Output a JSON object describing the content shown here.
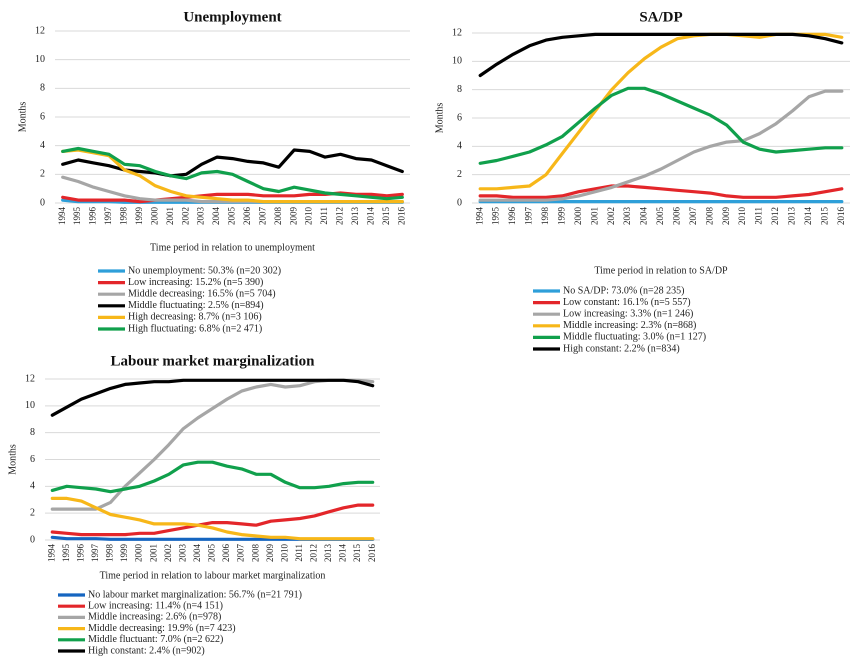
{
  "chart_data": [
    {
      "type": "line",
      "title": "Unemployment",
      "y_label": "Months",
      "x_label": "Time period in relation to unemployment",
      "categories": [
        "1994",
        "1995",
        "1996",
        "1997",
        "1998",
        "1999",
        "2000",
        "2001",
        "2002",
        "2003",
        "2004",
        "2005",
        "2006",
        "2007",
        "2008",
        "2009",
        "2010",
        "2011",
        "2012",
        "2013",
        "2014",
        "2015",
        "2016"
      ],
      "ylim": [
        0,
        12
      ],
      "yticks": [
        0,
        2,
        4,
        6,
        8,
        10,
        12
      ],
      "grid": true,
      "series": [
        {
          "name": "No unemployment: 50.3% (n=20 302)",
          "color": "#2e9fd9",
          "values": [
            0.2,
            0.1,
            0.1,
            0.1,
            0.05,
            0.05,
            0.05,
            0.05,
            0.05,
            0.05,
            0.05,
            0.05,
            0.05,
            0.05,
            0.05,
            0.05,
            0.05,
            0.05,
            0.05,
            0.05,
            0.05,
            0.05,
            0.05
          ]
        },
        {
          "name": "Low increasing: 15.2% (n=5 390)",
          "color": "#e3262a",
          "values": [
            0.4,
            0.2,
            0.2,
            0.2,
            0.2,
            0.1,
            0.2,
            0.3,
            0.4,
            0.5,
            0.6,
            0.6,
            0.6,
            0.5,
            0.5,
            0.5,
            0.6,
            0.6,
            0.7,
            0.6,
            0.6,
            0.5,
            0.6
          ]
        },
        {
          "name": "Middle decreasing: 16.5% (n=5 704)",
          "color": "#a6a6a6",
          "values": [
            1.8,
            1.5,
            1.1,
            0.8,
            0.5,
            0.3,
            0.2,
            0.2,
            0.2,
            0.1,
            0.1,
            0.1,
            0.1,
            0.1,
            0.1,
            0.1,
            0.1,
            0.1,
            0.1,
            0.1,
            0.1,
            0.1,
            0.1
          ]
        },
        {
          "name": "Middle fluctuating: 2.5% (n=894)",
          "color": "#000000",
          "values": [
            2.7,
            3.0,
            2.8,
            2.6,
            2.3,
            2.2,
            2.1,
            1.9,
            2.0,
            2.7,
            3.2,
            3.1,
            2.9,
            2.8,
            2.5,
            3.7,
            3.6,
            3.2,
            3.4,
            3.1,
            3.0,
            2.6,
            2.2
          ]
        },
        {
          "name": "High decreasing: 8.7% (n=3 106)",
          "color": "#f7b719",
          "values": [
            3.6,
            3.7,
            3.5,
            3.3,
            2.3,
            1.9,
            1.2,
            0.8,
            0.5,
            0.4,
            0.3,
            0.2,
            0.2,
            0.1,
            0.1,
            0.1,
            0.1,
            0.1,
            0.1,
            0.1,
            0.1,
            0.1,
            0.1
          ]
        },
        {
          "name": "High fluctuating: 6.8% (n=2 471)",
          "color": "#10a04c",
          "values": [
            3.6,
            3.8,
            3.6,
            3.4,
            2.7,
            2.6,
            2.2,
            1.9,
            1.7,
            2.1,
            2.2,
            2.0,
            1.5,
            1.0,
            0.8,
            1.1,
            0.9,
            0.7,
            0.6,
            0.5,
            0.4,
            0.3,
            0.4
          ]
        }
      ]
    },
    {
      "type": "line",
      "title": "SA/DP",
      "y_label": "Months",
      "x_label": "Time period in relation to SA/DP",
      "categories": [
        "1994",
        "1995",
        "1996",
        "1997",
        "1998",
        "1999",
        "2000",
        "2001",
        "2002",
        "2003",
        "2004",
        "2005",
        "2006",
        "2007",
        "2008",
        "2009",
        "2010",
        "2011",
        "2012",
        "2013",
        "2014",
        "2015",
        "2016"
      ],
      "ylim": [
        0,
        12
      ],
      "yticks": [
        0,
        2,
        4,
        6,
        8,
        10,
        12
      ],
      "grid": true,
      "series": [
        {
          "name": "No SA/DP: 73.0% (n=28 235)",
          "color": "#2e9fd9",
          "values": [
            0.1,
            0.1,
            0.1,
            0.1,
            0.1,
            0.1,
            0.1,
            0.1,
            0.1,
            0.1,
            0.1,
            0.1,
            0.1,
            0.1,
            0.1,
            0.1,
            0.1,
            0.1,
            0.1,
            0.1,
            0.1,
            0.1,
            0.1
          ]
        },
        {
          "name": "Low constant: 16.1% (n=5 557)",
          "color": "#e3262a",
          "values": [
            0.5,
            0.5,
            0.4,
            0.4,
            0.4,
            0.5,
            0.8,
            1.0,
            1.2,
            1.2,
            1.1,
            1.0,
            0.9,
            0.8,
            0.7,
            0.5,
            0.4,
            0.4,
            0.4,
            0.5,
            0.6,
            0.8,
            1.0
          ]
        },
        {
          "name": "Low increasing: 3.3% (n=1 246)",
          "color": "#a6a6a6",
          "values": [
            0.2,
            0.2,
            0.2,
            0.2,
            0.2,
            0.3,
            0.5,
            0.8,
            1.1,
            1.5,
            1.9,
            2.4,
            3.0,
            3.6,
            4.0,
            4.3,
            4.4,
            4.9,
            5.6,
            6.5,
            7.5,
            7.9,
            7.9
          ]
        },
        {
          "name": "Middle increasing: 2.3% (n=868)",
          "color": "#f7b719",
          "values": [
            1.0,
            1.0,
            1.1,
            1.2,
            2.0,
            3.5,
            5.0,
            6.5,
            8.0,
            9.2,
            10.2,
            11.0,
            11.6,
            11.8,
            11.9,
            11.9,
            11.8,
            11.7,
            11.9,
            11.9,
            11.9,
            11.9,
            11.7
          ]
        },
        {
          "name": "Middle fluctuating: 3.0% (n=1 127)",
          "color": "#10a04c",
          "values": [
            2.8,
            3.0,
            3.3,
            3.6,
            4.1,
            4.7,
            5.7,
            6.7,
            7.6,
            8.1,
            8.1,
            7.7,
            7.2,
            6.7,
            6.2,
            5.5,
            4.3,
            3.8,
            3.6,
            3.7,
            3.8,
            3.9,
            3.9
          ]
        },
        {
          "name": "High constant: 2.2% (n=834)",
          "color": "#000000",
          "values": [
            9.0,
            9.8,
            10.5,
            11.1,
            11.5,
            11.7,
            11.8,
            11.9,
            11.9,
            11.9,
            11.9,
            11.9,
            11.9,
            11.9,
            11.9,
            11.9,
            11.9,
            11.9,
            11.9,
            11.9,
            11.8,
            11.6,
            11.3
          ]
        }
      ]
    },
    {
      "type": "line",
      "title": "Labour market marginalization",
      "y_label": "Months",
      "x_label": "Time period in relation to labour market marginalization",
      "categories": [
        "1994",
        "1995",
        "1996",
        "1997",
        "1998",
        "1999",
        "2000",
        "2001",
        "2002",
        "2003",
        "2004",
        "2005",
        "2006",
        "2007",
        "2008",
        "2009",
        "2010",
        "2011",
        "2012",
        "2013",
        "2014",
        "2015",
        "2016"
      ],
      "ylim": [
        0,
        12
      ],
      "yticks": [
        0,
        2,
        4,
        6,
        8,
        10,
        12
      ],
      "grid": true,
      "series": [
        {
          "name": "No labour market marginalization: 56.7% (n=21 791)",
          "color": "#1565c0",
          "values": [
            0.2,
            0.1,
            0.1,
            0.1,
            0.05,
            0.05,
            0.05,
            0.05,
            0.05,
            0.05,
            0.05,
            0.05,
            0.05,
            0.05,
            0.05,
            0.05,
            0.05,
            0.05,
            0.05,
            0.05,
            0.05,
            0.05,
            0.05
          ]
        },
        {
          "name": "Low increasing: 11.4% (n=4 151)",
          "color": "#e3262a",
          "values": [
            0.6,
            0.5,
            0.4,
            0.4,
            0.4,
            0.4,
            0.5,
            0.5,
            0.7,
            0.9,
            1.1,
            1.3,
            1.3,
            1.2,
            1.1,
            1.4,
            1.5,
            1.6,
            1.8,
            2.1,
            2.4,
            2.6,
            2.6
          ]
        },
        {
          "name": "Middle increasing: 2.6% (n=978)",
          "color": "#a6a6a6",
          "values": [
            2.3,
            2.3,
            2.3,
            2.3,
            2.8,
            4.0,
            5.0,
            6.0,
            7.1,
            8.3,
            9.1,
            9.8,
            10.5,
            11.1,
            11.4,
            11.6,
            11.4,
            11.5,
            11.8,
            11.9,
            11.9,
            11.9,
            11.8
          ]
        },
        {
          "name": "Middle decreasing: 19.9% (n=7 423)",
          "color": "#f7b719",
          "values": [
            3.1,
            3.1,
            2.9,
            2.4,
            1.9,
            1.7,
            1.5,
            1.2,
            1.2,
            1.2,
            1.1,
            0.9,
            0.6,
            0.4,
            0.3,
            0.2,
            0.2,
            0.1,
            0.1,
            0.1,
            0.1,
            0.1,
            0.1
          ]
        },
        {
          "name": "Middle fluctuant: 7.0% (n=2 622)",
          "color": "#10a04c",
          "values": [
            3.7,
            4.0,
            3.9,
            3.8,
            3.6,
            3.8,
            4.0,
            4.4,
            4.9,
            5.6,
            5.8,
            5.8,
            5.5,
            5.3,
            4.9,
            4.9,
            4.3,
            3.9,
            3.9,
            4.0,
            4.2,
            4.3,
            4.3
          ]
        },
        {
          "name": "High constant: 2.4% (n=902)",
          "color": "#000000",
          "values": [
            9.3,
            9.9,
            10.5,
            10.9,
            11.3,
            11.6,
            11.7,
            11.8,
            11.8,
            11.9,
            11.9,
            11.9,
            11.9,
            11.9,
            11.9,
            11.9,
            11.9,
            11.9,
            11.9,
            11.9,
            11.9,
            11.8,
            11.5
          ]
        }
      ]
    }
  ]
}
